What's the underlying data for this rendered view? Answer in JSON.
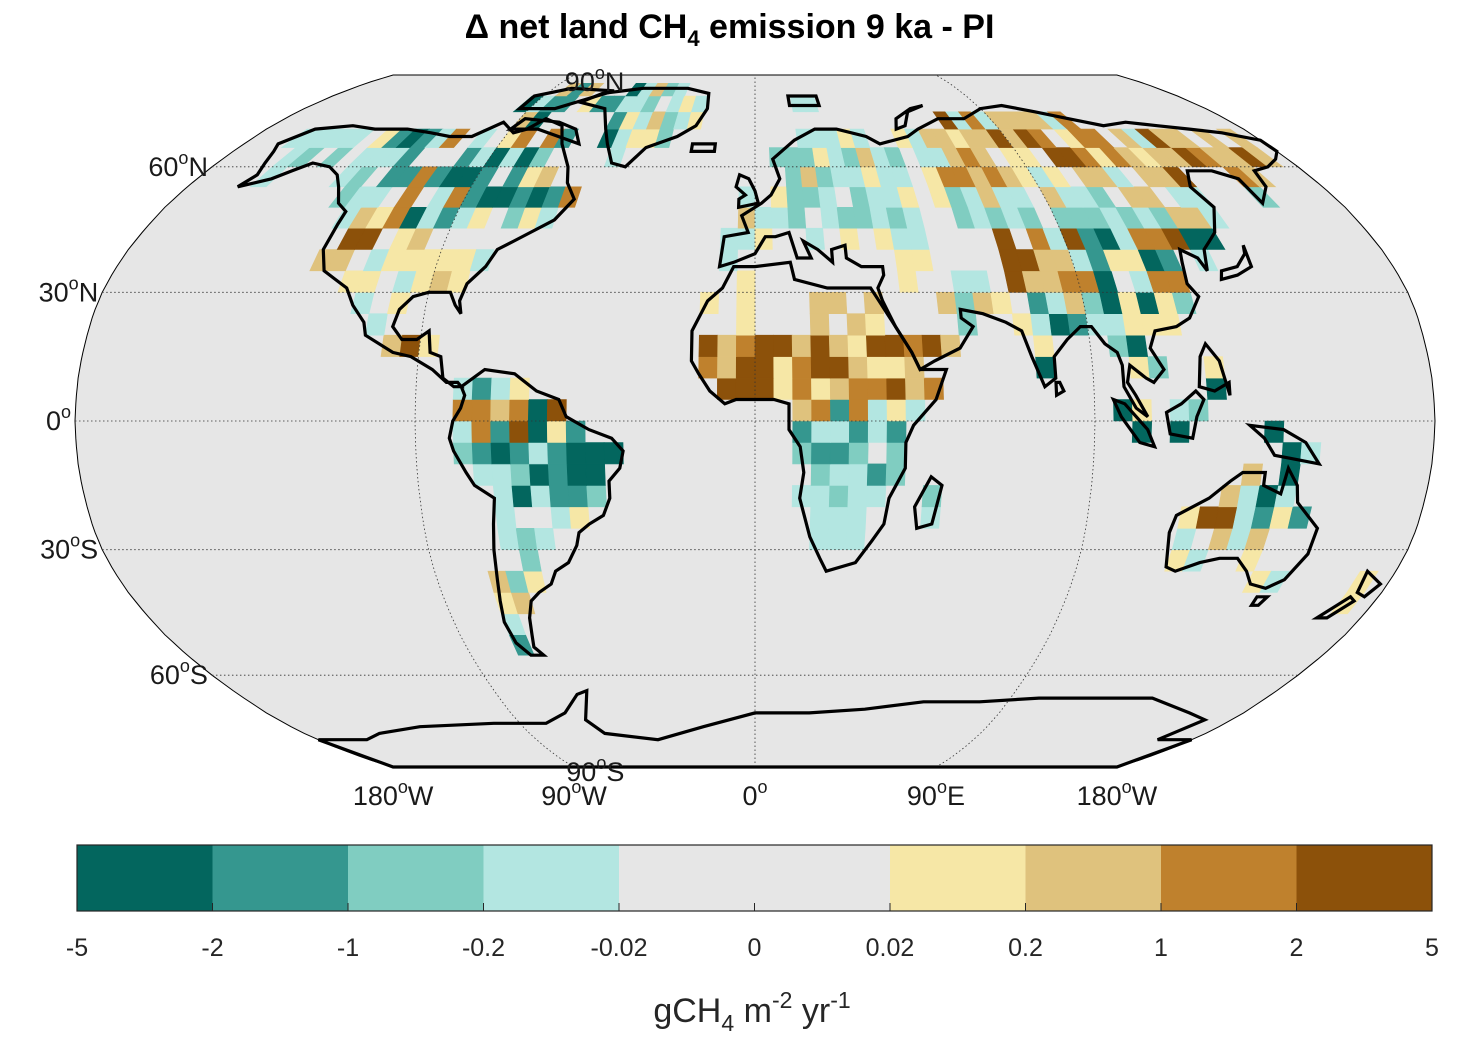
{
  "title": {
    "prefix": "Δ net land CH",
    "subscript": "4",
    "suffix": " emission 9 ka - PI"
  },
  "map": {
    "projection": "Robinson",
    "background_color": "#e6e6e6",
    "lat_labels": [
      {
        "deg": "90",
        "hemi": "N",
        "lat": 90
      },
      {
        "deg": "60",
        "hemi": "N",
        "lat": 60
      },
      {
        "deg": "30",
        "hemi": "N",
        "lat": 30
      },
      {
        "deg": "0",
        "hemi": "",
        "lat": 0
      },
      {
        "deg": "30",
        "hemi": "S",
        "lat": -30
      },
      {
        "deg": "60",
        "hemi": "S",
        "lat": -60
      },
      {
        "deg": "90",
        "hemi": "S",
        "lat": -90
      }
    ],
    "lon_labels": [
      {
        "deg": "180",
        "hemi": "W",
        "lon": -180
      },
      {
        "deg": "90",
        "hemi": "W",
        "lon": -90
      },
      {
        "deg": "0",
        "hemi": "",
        "lon": 0
      },
      {
        "deg": "90",
        "hemi": "E",
        "lon": 90
      },
      {
        "deg": "180",
        "hemi": "W",
        "lon": 180
      }
    ]
  },
  "colorbar": {
    "colors": [
      "#03665e",
      "#35978f",
      "#80cdc1",
      "#b3e6e1",
      "#e6e6e6",
      "#e6e6e6",
      "#f6e7a6",
      "#dfc27d",
      "#bf812d",
      "#8c510a"
    ],
    "ticks": [
      "-5",
      "-2",
      "-1",
      "-0.2",
      "-0.02",
      "0",
      "0.02",
      "0.2",
      "1",
      "2",
      "5"
    ],
    "unit": {
      "a": "gCH",
      "a_sub": "4",
      "b": " m",
      "b_sup": "-2",
      "c": " yr",
      "c_sup": "-1"
    }
  }
}
